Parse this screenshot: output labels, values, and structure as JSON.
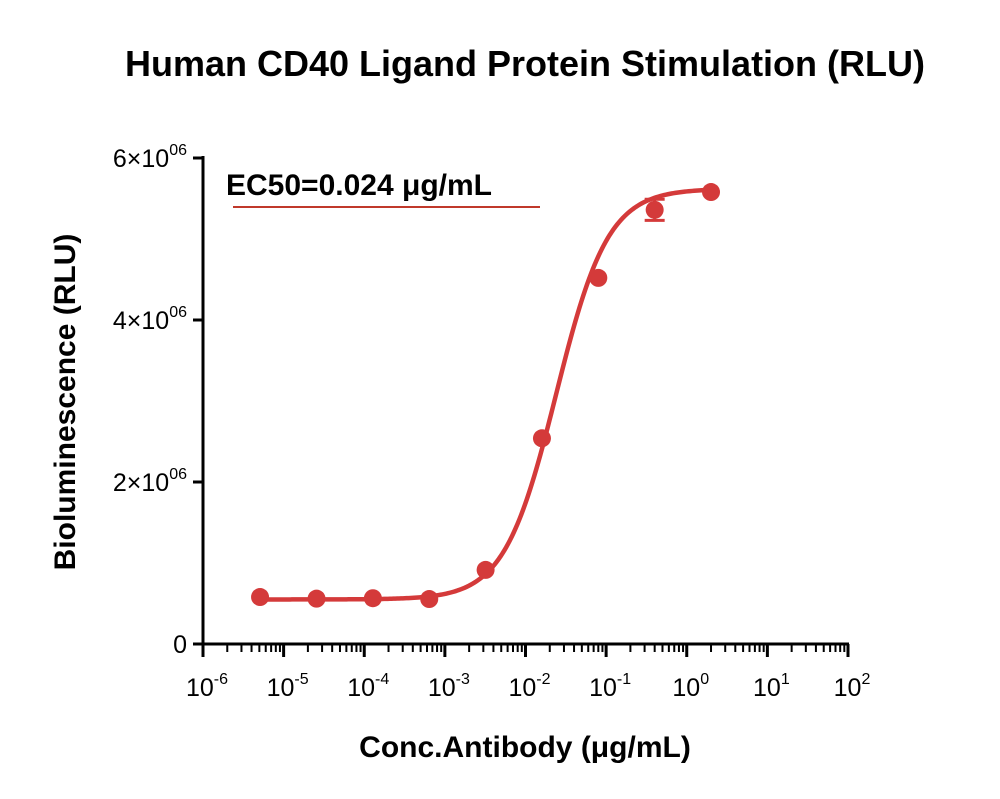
{
  "chart_data": {
    "type": "scatter",
    "title": "Human CD40 Ligand Protein Stimulation (RLU)",
    "xlabel": "Conc.Antibody (μg/mL)",
    "ylabel": "Bioluminescence (RLU)",
    "x_scale": "log",
    "xlim": [
      1e-06,
      100
    ],
    "ylim": [
      0,
      6000000
    ],
    "x_ticks": [
      {
        "base": "10",
        "exp": "-6"
      },
      {
        "base": "10",
        "exp": "-5"
      },
      {
        "base": "10",
        "exp": "-4"
      },
      {
        "base": "10",
        "exp": "-3"
      },
      {
        "base": "10",
        "exp": "-2"
      },
      {
        "base": "10",
        "exp": "-1"
      },
      {
        "base": "10",
        "exp": "0"
      },
      {
        "base": "10",
        "exp": "1"
      },
      {
        "base": "10",
        "exp": "2"
      }
    ],
    "y_ticks": [
      {
        "value": 0,
        "mant": "0",
        "exp": ""
      },
      {
        "value": 2000000,
        "mant": "2×10",
        "exp": "06"
      },
      {
        "value": 4000000,
        "mant": "4×10",
        "exp": "06"
      },
      {
        "value": 6000000,
        "mant": "6×10",
        "exp": "06"
      }
    ],
    "series": [
      {
        "color": "#d43a3a",
        "points": [
          {
            "x": 5.1e-06,
            "y": 580000
          },
          {
            "x": 2.56e-05,
            "y": 560000
          },
          {
            "x": 0.000128,
            "y": 565000
          },
          {
            "x": 0.00064,
            "y": 555000
          },
          {
            "x": 0.0032,
            "y": 915000
          },
          {
            "x": 0.016,
            "y": 2540000
          },
          {
            "x": 0.08,
            "y": 4520000
          },
          {
            "x": 0.4,
            "y": 5360000,
            "err": 130000
          },
          {
            "x": 2.0,
            "y": 5580000
          }
        ],
        "fit": {
          "bottom": 550000,
          "top": 5620000,
          "ec50": 0.024,
          "hill": 1.35
        }
      }
    ],
    "annotation": "EC50=0.024 μg/mL",
    "grid": false,
    "legend": "none"
  }
}
